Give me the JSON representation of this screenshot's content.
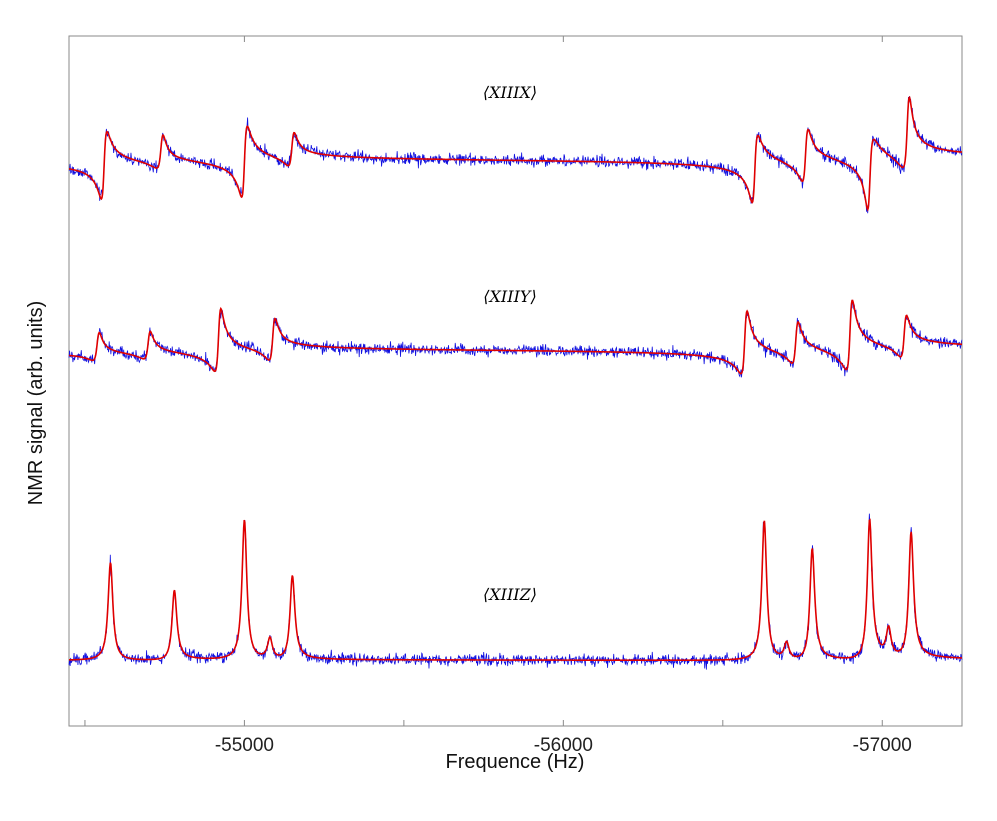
{
  "chart_data": {
    "type": "line",
    "title": "",
    "xlabel": "Frequence (Hz)",
    "ylabel": "NMR signal (arb. units)",
    "x_axis": "reversed",
    "xlim": [
      -54450,
      -57250
    ],
    "xticks": [
      -55000,
      -56000,
      -57000
    ],
    "xtick_labels": [
      "-55000",
      "-56000",
      "-57000"
    ],
    "y_ticks_shown": false,
    "grid": false,
    "colors": {
      "measured": "#1010e0",
      "fit": "#e00000",
      "axes": "#8a8a8a"
    },
    "series_styles": [
      {
        "role": "measured",
        "color": "#1010e0",
        "style": "thin noisy line"
      },
      {
        "role": "fit",
        "color": "#e00000",
        "style": "smooth line"
      }
    ],
    "panels": [
      {
        "label": "⟨XIIIX⟩",
        "lineshape": "mixed absorptive/dispersive",
        "peaks": [
          {
            "x": -54560,
            "amp": 0.9,
            "phase": 1.6
          },
          {
            "x": -54740,
            "amp": 0.45,
            "phase": 1.0
          },
          {
            "x": -55000,
            "amp": 0.95,
            "phase": 1.6
          },
          {
            "x": -55150,
            "amp": 0.45,
            "phase": 1.2
          },
          {
            "x": -56600,
            "amp": 0.9,
            "phase": 1.7
          },
          {
            "x": -56760,
            "amp": 0.7,
            "phase": 1.4
          },
          {
            "x": -56960,
            "amp": 0.95,
            "phase": 2.0
          },
          {
            "x": -57080,
            "amp": 0.95,
            "phase": 1.0
          }
        ]
      },
      {
        "label": "⟨XIIIY⟩",
        "lineshape": "dispersive",
        "peaks": [
          {
            "x": -54540,
            "amp": 0.4,
            "phase": 1.0
          },
          {
            "x": -54700,
            "amp": 0.4,
            "phase": 1.0
          },
          {
            "x": -54920,
            "amp": 0.9,
            "phase": 1.2
          },
          {
            "x": -55090,
            "amp": 0.6,
            "phase": 1.2
          },
          {
            "x": -56570,
            "amp": 0.9,
            "phase": 1.2
          },
          {
            "x": -56730,
            "amp": 0.6,
            "phase": 1.2
          },
          {
            "x": -56900,
            "amp": 1.0,
            "phase": 1.2
          },
          {
            "x": -57070,
            "amp": 0.6,
            "phase": 1.2
          }
        ]
      },
      {
        "label": "⟨XIIIZ⟩",
        "lineshape": "absorptive",
        "peaks": [
          {
            "x": -54580,
            "amp": 0.7,
            "phase": 0.0
          },
          {
            "x": -54780,
            "amp": 0.5,
            "phase": 0.1
          },
          {
            "x": -55000,
            "amp": 1.0,
            "phase": 0.0
          },
          {
            "x": -55080,
            "amp": 0.15,
            "phase": 0.0
          },
          {
            "x": -55150,
            "amp": 0.6,
            "phase": 0.1
          },
          {
            "x": -56630,
            "amp": 1.0,
            "phase": 0.0
          },
          {
            "x": -56700,
            "amp": 0.12,
            "phase": 0.0
          },
          {
            "x": -56780,
            "amp": 0.8,
            "phase": 0.1
          },
          {
            "x": -56960,
            "amp": 1.0,
            "phase": 0.1
          },
          {
            "x": -57020,
            "amp": 0.2,
            "phase": 0.0
          },
          {
            "x": -57090,
            "amp": 0.9,
            "phase": 0.1
          }
        ]
      }
    ]
  }
}
